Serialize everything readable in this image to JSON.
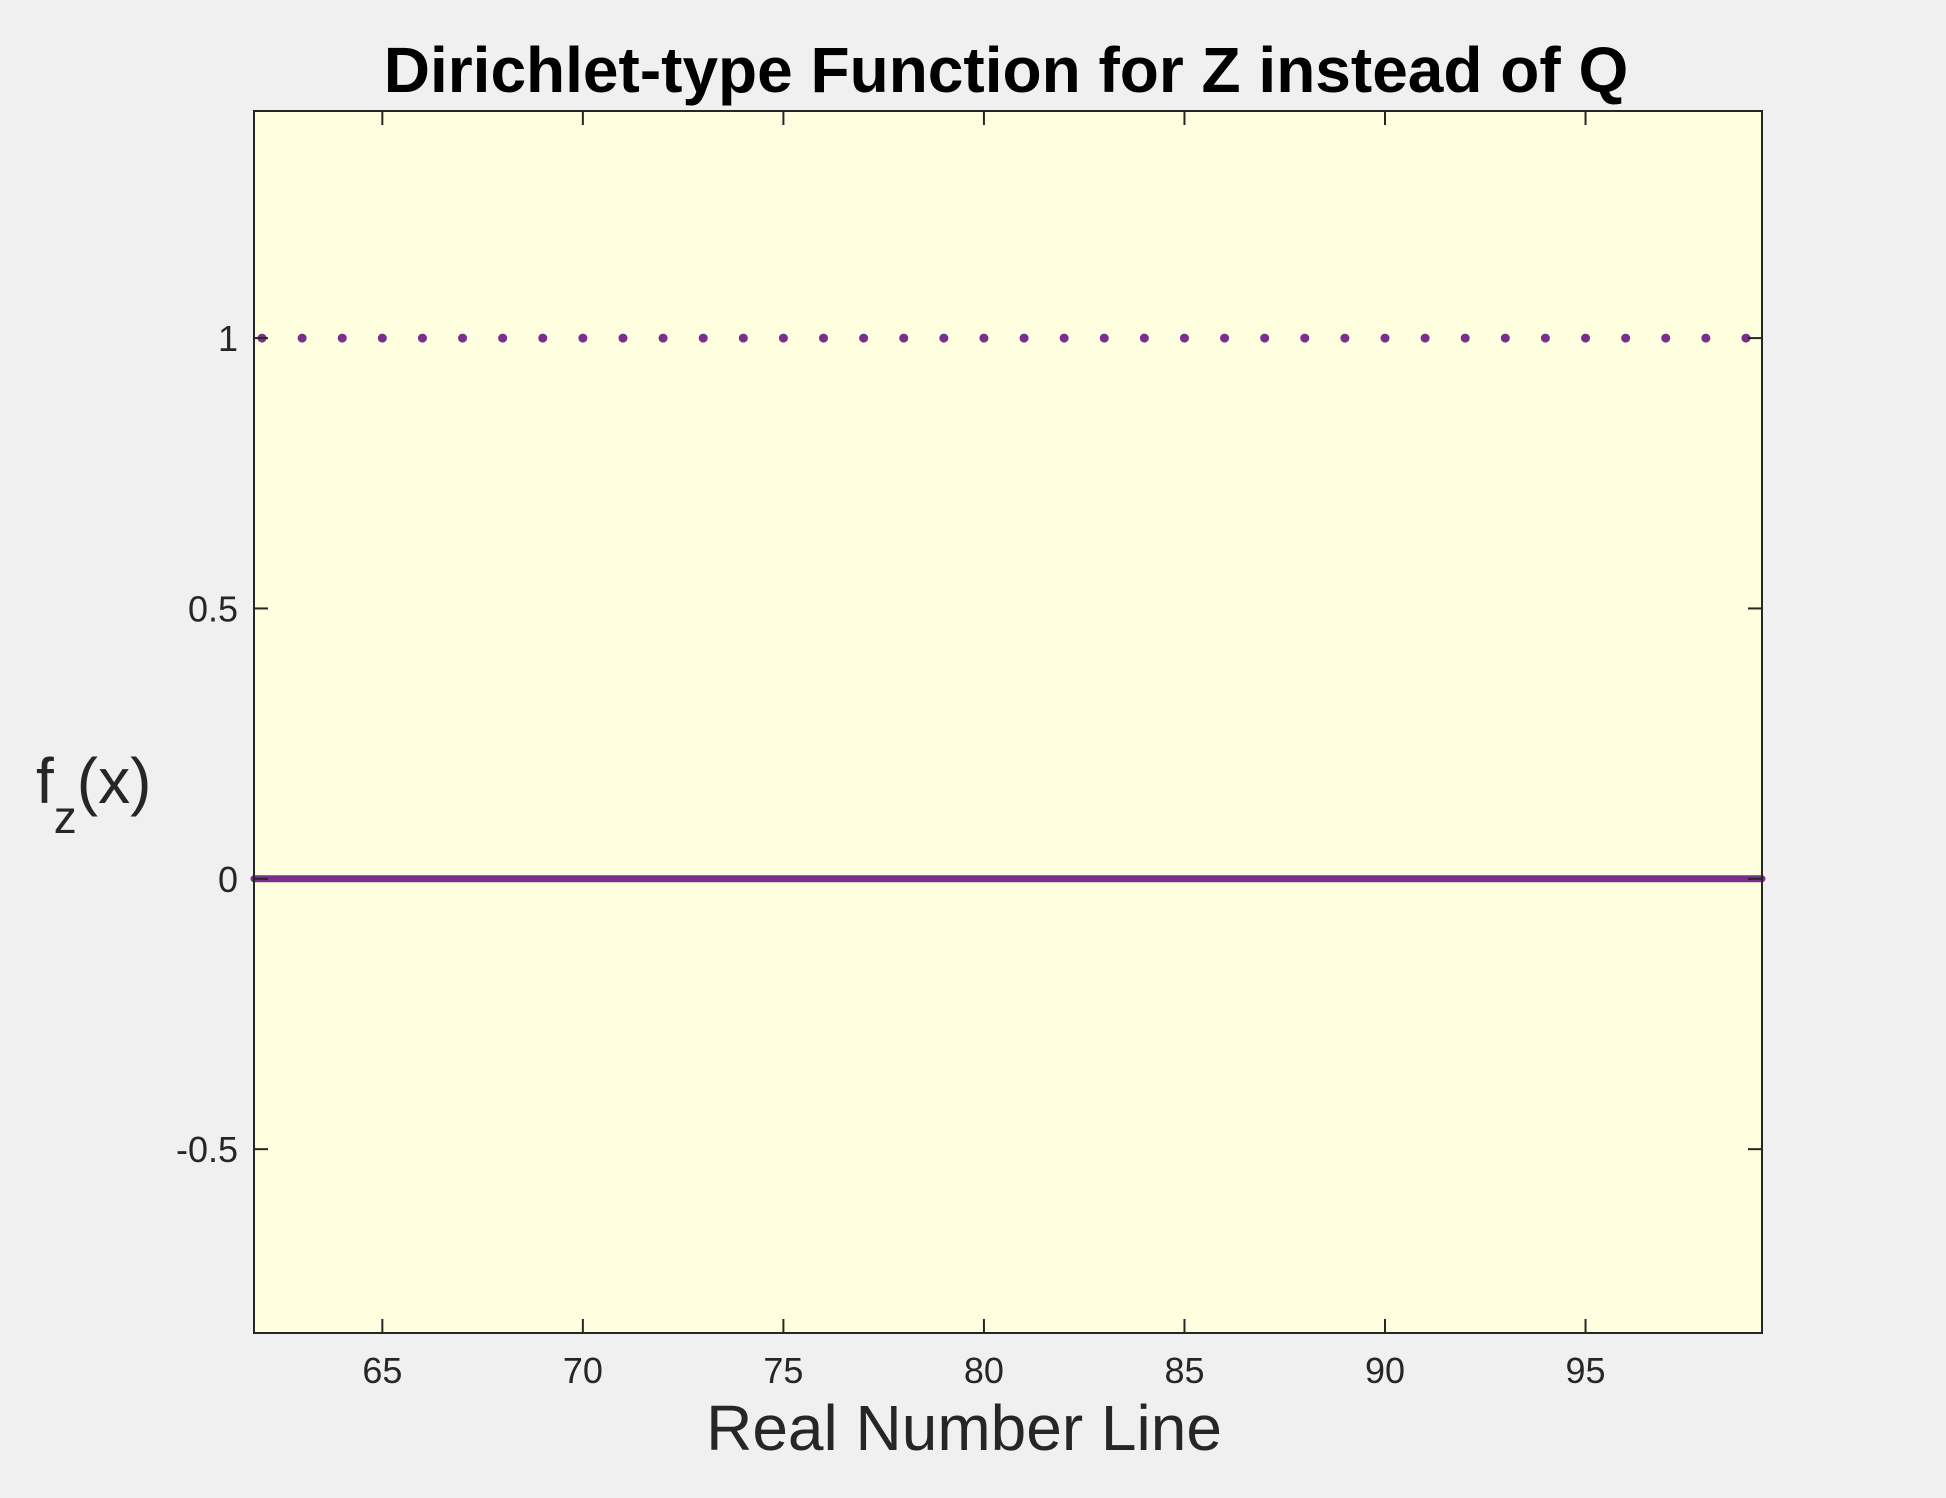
{
  "chart_data": {
    "type": "line",
    "title": "Dirichlet-type Function for Z instead of Q",
    "xlabel": "Real Number Line",
    "ylabel": {
      "base": "f",
      "subscript": "z",
      "suffix": "(x)"
    },
    "xlim": [
      61.8,
      99.4
    ],
    "ylim": [
      -0.84,
      1.42
    ],
    "xticks": [
      65,
      70,
      75,
      80,
      85,
      90,
      95
    ],
    "xtick_labels": [
      "65",
      "70",
      "75",
      "80",
      "85",
      "90",
      "95"
    ],
    "yticks": [
      -0.5,
      0,
      0.5,
      1
    ],
    "ytick_labels": [
      "-0.5",
      "0",
      "0.5",
      "1"
    ],
    "grid": false,
    "legend": "none",
    "series": [
      {
        "style": "solid-line",
        "x": [
          61.8,
          99.4
        ],
        "y": [
          0,
          0
        ]
      },
      {
        "style": "dots",
        "x": [
          62,
          63,
          64,
          65,
          66,
          67,
          68,
          69,
          70,
          71,
          72,
          73,
          74,
          75,
          76,
          77,
          78,
          79,
          80,
          81,
          82,
          83,
          84,
          85,
          86,
          87,
          88,
          89,
          90,
          91,
          92,
          93,
          94,
          95,
          96,
          97,
          98,
          99
        ],
        "y": [
          1,
          1,
          1,
          1,
          1,
          1,
          1,
          1,
          1,
          1,
          1,
          1,
          1,
          1,
          1,
          1,
          1,
          1,
          1,
          1,
          1,
          1,
          1,
          1,
          1,
          1,
          1,
          1,
          1,
          1,
          1,
          1,
          1,
          1,
          1,
          1,
          1,
          1
        ]
      }
    ],
    "colors": {
      "series": "#7b2f8c",
      "plot_background": "#ffffe0",
      "figure_background": "#f0f0f0",
      "axes": "#262626"
    }
  }
}
